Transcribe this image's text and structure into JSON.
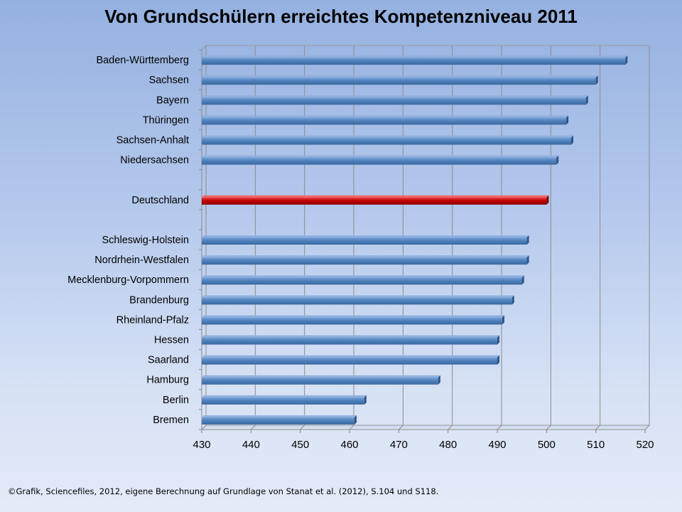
{
  "chart_data": {
    "type": "bar",
    "orientation": "horizontal",
    "title": "Von Grundschülern erreichtes Kompetenzniveau 2011",
    "xlabel": "",
    "ylabel": "",
    "xlim": [
      430,
      520
    ],
    "xticks": [
      430,
      440,
      450,
      460,
      470,
      480,
      490,
      500,
      510,
      520
    ],
    "grid": true,
    "categories": [
      "Baden-Württemberg",
      "Sachsen",
      "Bayern",
      "Thüringen",
      "Sachsen-Anhalt",
      "Niedersachsen",
      "",
      "Deutschland",
      "",
      "Schleswig-Holstein",
      "Nordrhein-Westfalen",
      "Mecklenburg-Vorpommern",
      "Brandenburg",
      "Rheinland-Pfalz",
      "Hessen",
      "Saarland",
      "Hamburg",
      "Berlin",
      "Bremen"
    ],
    "values": [
      516,
      510,
      508,
      504,
      505,
      502,
      null,
      500,
      null,
      496,
      496,
      495,
      493,
      491,
      490,
      490,
      478,
      463,
      461
    ],
    "highlight_category": "Deutschland",
    "colors": {
      "bar": "#4f81bd",
      "highlight": "#c00000",
      "grid": "#8c8c8c"
    }
  },
  "footer": {
    "credit": "©Grafik, Sciencefiles, 2012, eigene Berechnung auf Grundlage von Stanat et al. (2012), S.104 und S118."
  }
}
